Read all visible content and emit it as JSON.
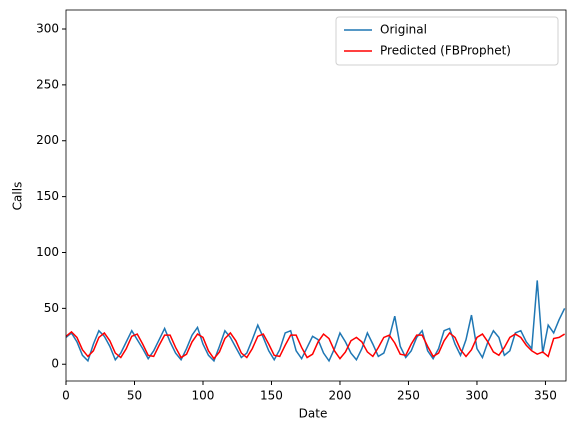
{
  "chart_data": {
    "type": "line",
    "x_label": "Date",
    "y_label": "Calls",
    "x": [
      0,
      4,
      8,
      12,
      16,
      20,
      24,
      28,
      32,
      36,
      40,
      44,
      48,
      52,
      56,
      60,
      64,
      68,
      72,
      76,
      80,
      84,
      88,
      92,
      96,
      100,
      104,
      108,
      112,
      116,
      120,
      124,
      128,
      132,
      136,
      140,
      144,
      148,
      152,
      156,
      160,
      164,
      168,
      172,
      176,
      180,
      184,
      188,
      192,
      196,
      200,
      204,
      208,
      212,
      216,
      220,
      224,
      228,
      232,
      236,
      240,
      244,
      248,
      252,
      256,
      260,
      264,
      268,
      272,
      276,
      280,
      284,
      288,
      292,
      296,
      300,
      304,
      308,
      312,
      316,
      320,
      324,
      328,
      332,
      336,
      340,
      344,
      348,
      352,
      356,
      360,
      364
    ],
    "series": [
      {
        "name": "Original",
        "color": "#1f77b4",
        "values": [
          24,
          28,
          20,
          8,
          3,
          18,
          30,
          25,
          16,
          4,
          10,
          20,
          30,
          22,
          14,
          5,
          12,
          22,
          32,
          20,
          10,
          4,
          14,
          26,
          33,
          18,
          8,
          3,
          16,
          30,
          24,
          15,
          6,
          10,
          22,
          35,
          24,
          12,
          4,
          13,
          28,
          30,
          12,
          5,
          15,
          25,
          22,
          10,
          3,
          14,
          28,
          20,
          10,
          4,
          14,
          28,
          18,
          7,
          10,
          24,
          43,
          16,
          6,
          12,
          24,
          30,
          12,
          5,
          14,
          30,
          32,
          18,
          8,
          22,
          44,
          14,
          6,
          20,
          30,
          24,
          8,
          12,
          28,
          30,
          20,
          14,
          75,
          10,
          35,
          28,
          40,
          50
        ]
      },
      {
        "name": "Predicted (FBProphet)",
        "color": "#ff0000",
        "values": [
          25,
          29,
          24,
          13,
          7,
          12,
          24,
          28,
          21,
          10,
          6,
          14,
          25,
          27,
          18,
          8,
          7,
          17,
          26,
          26,
          15,
          6,
          9,
          20,
          27,
          24,
          12,
          5,
          11,
          23,
          28,
          21,
          10,
          6,
          14,
          25,
          27,
          18,
          8,
          7,
          17,
          26,
          26,
          15,
          6,
          9,
          20,
          27,
          23,
          12,
          5,
          11,
          21,
          24,
          20,
          11,
          7,
          15,
          24,
          26,
          19,
          9,
          8,
          18,
          26,
          26,
          16,
          7,
          10,
          21,
          28,
          24,
          13,
          7,
          13,
          24,
          27,
          20,
          11,
          8,
          15,
          24,
          27,
          24,
          17,
          12,
          9,
          11,
          7,
          23,
          24,
          27
        ]
      }
    ],
    "xlim": [
      0,
      365
    ],
    "ylim": [
      -15,
      317
    ],
    "xticks": [
      0,
      50,
      100,
      150,
      200,
      250,
      300,
      350
    ],
    "yticks": [
      0,
      50,
      100,
      150,
      200,
      250,
      300
    ],
    "legend": "upper right"
  }
}
